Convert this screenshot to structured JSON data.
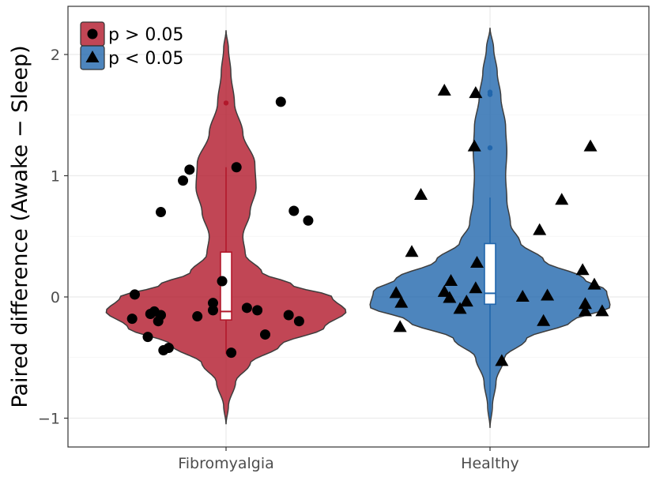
{
  "chart_data": {
    "type": "violin",
    "ylabel": "Paired difference (Awake − Sleep)",
    "xlabel": "",
    "ylim": [
      -1.25,
      2.4
    ],
    "y_ticks": [
      -1,
      0,
      1,
      2
    ],
    "y_tick_labels": [
      "−1",
      "0",
      "1",
      "2"
    ],
    "grid": true,
    "categories": [
      "Fibromyalgia",
      "Healthy"
    ],
    "legend": {
      "position": "top-left",
      "items": [
        {
          "label": "p > 0.05",
          "marker": "circle"
        },
        {
          "label": "p < 0.05",
          "marker": "triangle"
        }
      ]
    },
    "groups": [
      {
        "name": "Fibromyalgia",
        "color": "#B2182B",
        "violin_range": [
          -1.05,
          2.2
        ],
        "density_profile": [
          [
            -1.05,
            0.0
          ],
          [
            -0.9,
            0.02
          ],
          [
            -0.7,
            0.08
          ],
          [
            -0.55,
            0.2
          ],
          [
            -0.4,
            0.45
          ],
          [
            -0.25,
            0.82
          ],
          [
            -0.12,
            1.0
          ],
          [
            0.0,
            0.88
          ],
          [
            0.1,
            0.55
          ],
          [
            0.2,
            0.3
          ],
          [
            0.35,
            0.16
          ],
          [
            0.5,
            0.14
          ],
          [
            0.7,
            0.2
          ],
          [
            0.9,
            0.25
          ],
          [
            1.1,
            0.24
          ],
          [
            1.35,
            0.14
          ],
          [
            1.6,
            0.07
          ],
          [
            1.85,
            0.04
          ],
          [
            2.05,
            0.02
          ],
          [
            2.2,
            0.0
          ]
        ],
        "box": {
          "q1": -0.19,
          "median": -0.12,
          "q3": 0.37,
          "whisker_low": -0.47,
          "whisker_high": 1.07
        },
        "outliers": [
          1.6
        ],
        "points": [
          {
            "x": -0.7,
            "y": 0.02,
            "marker": "circle"
          },
          {
            "x": -0.72,
            "y": -0.18,
            "marker": "circle"
          },
          {
            "x": -0.58,
            "y": -0.14,
            "marker": "circle"
          },
          {
            "x": -0.55,
            "y": -0.12,
            "marker": "circle"
          },
          {
            "x": -0.5,
            "y": -0.15,
            "marker": "circle"
          },
          {
            "x": -0.52,
            "y": -0.2,
            "marker": "circle"
          },
          {
            "x": -0.6,
            "y": -0.33,
            "marker": "circle"
          },
          {
            "x": -0.48,
            "y": -0.44,
            "marker": "circle"
          },
          {
            "x": -0.44,
            "y": -0.42,
            "marker": "circle"
          },
          {
            "x": -0.5,
            "y": 0.7,
            "marker": "circle"
          },
          {
            "x": -0.33,
            "y": 0.96,
            "marker": "circle"
          },
          {
            "x": -0.28,
            "y": 1.05,
            "marker": "circle"
          },
          {
            "x": -0.22,
            "y": -0.16,
            "marker": "circle"
          },
          {
            "x": -0.1,
            "y": -0.05,
            "marker": "circle"
          },
          {
            "x": -0.1,
            "y": -0.11,
            "marker": "circle"
          },
          {
            "x": -0.03,
            "y": 0.13,
            "marker": "circle"
          },
          {
            "x": 0.04,
            "y": -0.46,
            "marker": "circle"
          },
          {
            "x": 0.08,
            "y": 1.07,
            "marker": "circle"
          },
          {
            "x": 0.16,
            "y": -0.09,
            "marker": "circle"
          },
          {
            "x": 0.24,
            "y": -0.11,
            "marker": "circle"
          },
          {
            "x": 0.3,
            "y": -0.31,
            "marker": "circle"
          },
          {
            "x": 0.42,
            "y": 1.61,
            "marker": "circle"
          },
          {
            "x": 0.52,
            "y": 0.71,
            "marker": "circle"
          },
          {
            "x": 0.48,
            "y": -0.15,
            "marker": "circle"
          },
          {
            "x": 0.56,
            "y": -0.2,
            "marker": "circle"
          },
          {
            "x": 0.63,
            "y": 0.63,
            "marker": "circle"
          }
        ]
      },
      {
        "name": "Healthy",
        "color": "#2166AC",
        "violin_range": [
          -1.08,
          2.22
        ],
        "density_profile": [
          [
            -1.08,
            0.0
          ],
          [
            -0.9,
            0.02
          ],
          [
            -0.7,
            0.05
          ],
          [
            -0.5,
            0.12
          ],
          [
            -0.35,
            0.3
          ],
          [
            -0.2,
            0.68
          ],
          [
            -0.08,
            1.0
          ],
          [
            0.05,
            0.97
          ],
          [
            0.15,
            0.78
          ],
          [
            0.3,
            0.45
          ],
          [
            0.45,
            0.25
          ],
          [
            0.6,
            0.17
          ],
          [
            0.8,
            0.14
          ],
          [
            1.0,
            0.13
          ],
          [
            1.2,
            0.14
          ],
          [
            1.4,
            0.13
          ],
          [
            1.65,
            0.09
          ],
          [
            1.85,
            0.06
          ],
          [
            2.05,
            0.03
          ],
          [
            2.22,
            0.0
          ]
        ],
        "box": {
          "q1": -0.06,
          "median": 0.03,
          "q3": 0.44,
          "whisker_low": -1.0,
          "whisker_high": 0.82
        },
        "outliers": [
          1.23,
          1.67,
          1.69
        ],
        "points": [
          {
            "x": -0.72,
            "y": 0.03,
            "marker": "triangle"
          },
          {
            "x": -0.68,
            "y": -0.05,
            "marker": "triangle"
          },
          {
            "x": -0.69,
            "y": -0.25,
            "marker": "triangle"
          },
          {
            "x": -0.6,
            "y": 0.37,
            "marker": "triangle"
          },
          {
            "x": -0.53,
            "y": 0.84,
            "marker": "triangle"
          },
          {
            "x": -0.35,
            "y": 0.04,
            "marker": "triangle"
          },
          {
            "x": -0.31,
            "y": -0.01,
            "marker": "triangle"
          },
          {
            "x": -0.3,
            "y": 0.13,
            "marker": "triangle"
          },
          {
            "x": -0.23,
            "y": -0.1,
            "marker": "triangle"
          },
          {
            "x": -0.18,
            "y": -0.04,
            "marker": "triangle"
          },
          {
            "x": -0.35,
            "y": 1.7,
            "marker": "triangle"
          },
          {
            "x": -0.11,
            "y": 0.07,
            "marker": "triangle"
          },
          {
            "x": -0.1,
            "y": 0.28,
            "marker": "triangle"
          },
          {
            "x": -0.12,
            "y": 1.24,
            "marker": "triangle"
          },
          {
            "x": -0.11,
            "y": 1.68,
            "marker": "triangle"
          },
          {
            "x": 0.09,
            "y": -0.53,
            "marker": "triangle"
          },
          {
            "x": 0.25,
            "y": 0.0,
            "marker": "triangle"
          },
          {
            "x": 0.38,
            "y": 0.55,
            "marker": "triangle"
          },
          {
            "x": 0.41,
            "y": -0.2,
            "marker": "triangle"
          },
          {
            "x": 0.44,
            "y": 0.01,
            "marker": "triangle"
          },
          {
            "x": 0.55,
            "y": 0.8,
            "marker": "triangle"
          },
          {
            "x": 0.71,
            "y": 0.22,
            "marker": "triangle"
          },
          {
            "x": 0.73,
            "y": -0.06,
            "marker": "triangle"
          },
          {
            "x": 0.73,
            "y": -0.12,
            "marker": "triangle"
          },
          {
            "x": 0.8,
            "y": 0.1,
            "marker": "triangle"
          },
          {
            "x": 0.86,
            "y": -0.12,
            "marker": "triangle"
          },
          {
            "x": 0.77,
            "y": 1.24,
            "marker": "triangle"
          }
        ]
      }
    ]
  }
}
